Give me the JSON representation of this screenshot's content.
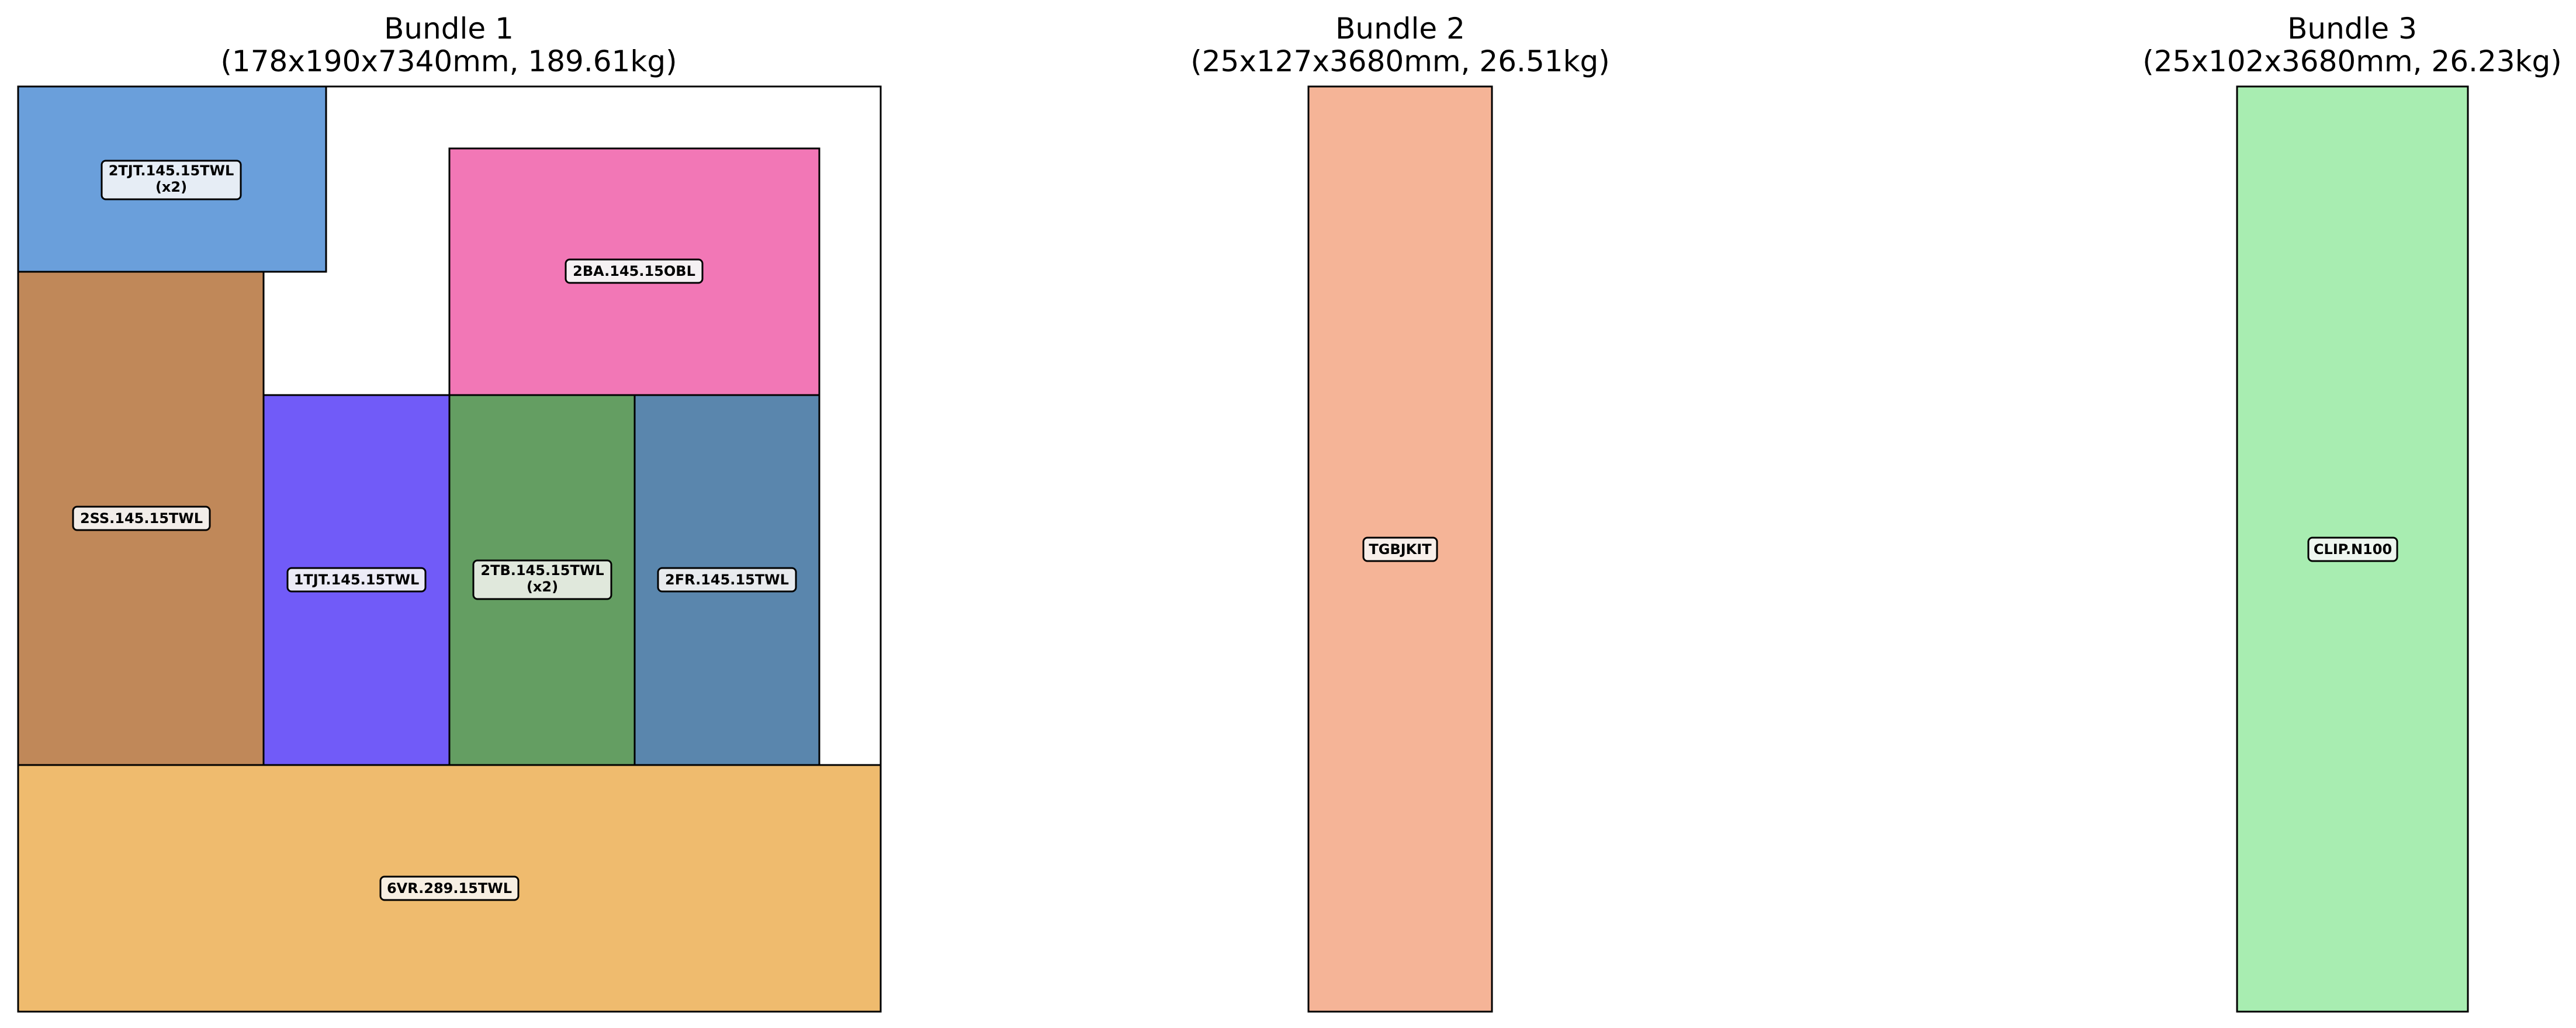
{
  "bundles": [
    {
      "title": "Bundle 1",
      "subtitle": "(178x190x7340mm, 189.61kg)",
      "items": [
        {
          "label": "2TJT.145.15TWL",
          "qty": "(x2)",
          "color": "#6a9fdb"
        },
        {
          "label": "2BA.145.15OBL",
          "qty": "",
          "color": "#f277b6"
        },
        {
          "label": "2SS.145.15TWL",
          "qty": "",
          "color": "#c08859"
        },
        {
          "label": "1TJT.145.15TWL",
          "qty": "",
          "color": "#715bf8"
        },
        {
          "label": "2TB.145.15TWL",
          "qty": "(x2)",
          "color": "#649e62"
        },
        {
          "label": "2FR.145.15TWL",
          "qty": "",
          "color": "#5a86ad"
        },
        {
          "label": "6VR.289.15TWL",
          "qty": "",
          "color": "#efbb6e"
        }
      ]
    },
    {
      "title": "Bundle 2",
      "subtitle": "(25x127x3680mm, 26.51kg)",
      "items": [
        {
          "label": "TGBJKIT",
          "qty": "",
          "color": "#f5b497"
        }
      ]
    },
    {
      "title": "Bundle 3",
      "subtitle": "(25x102x3680mm, 26.23kg)",
      "items": [
        {
          "label": "CLIP.N100",
          "qty": "",
          "color": "#a8edb1"
        }
      ]
    }
  ]
}
